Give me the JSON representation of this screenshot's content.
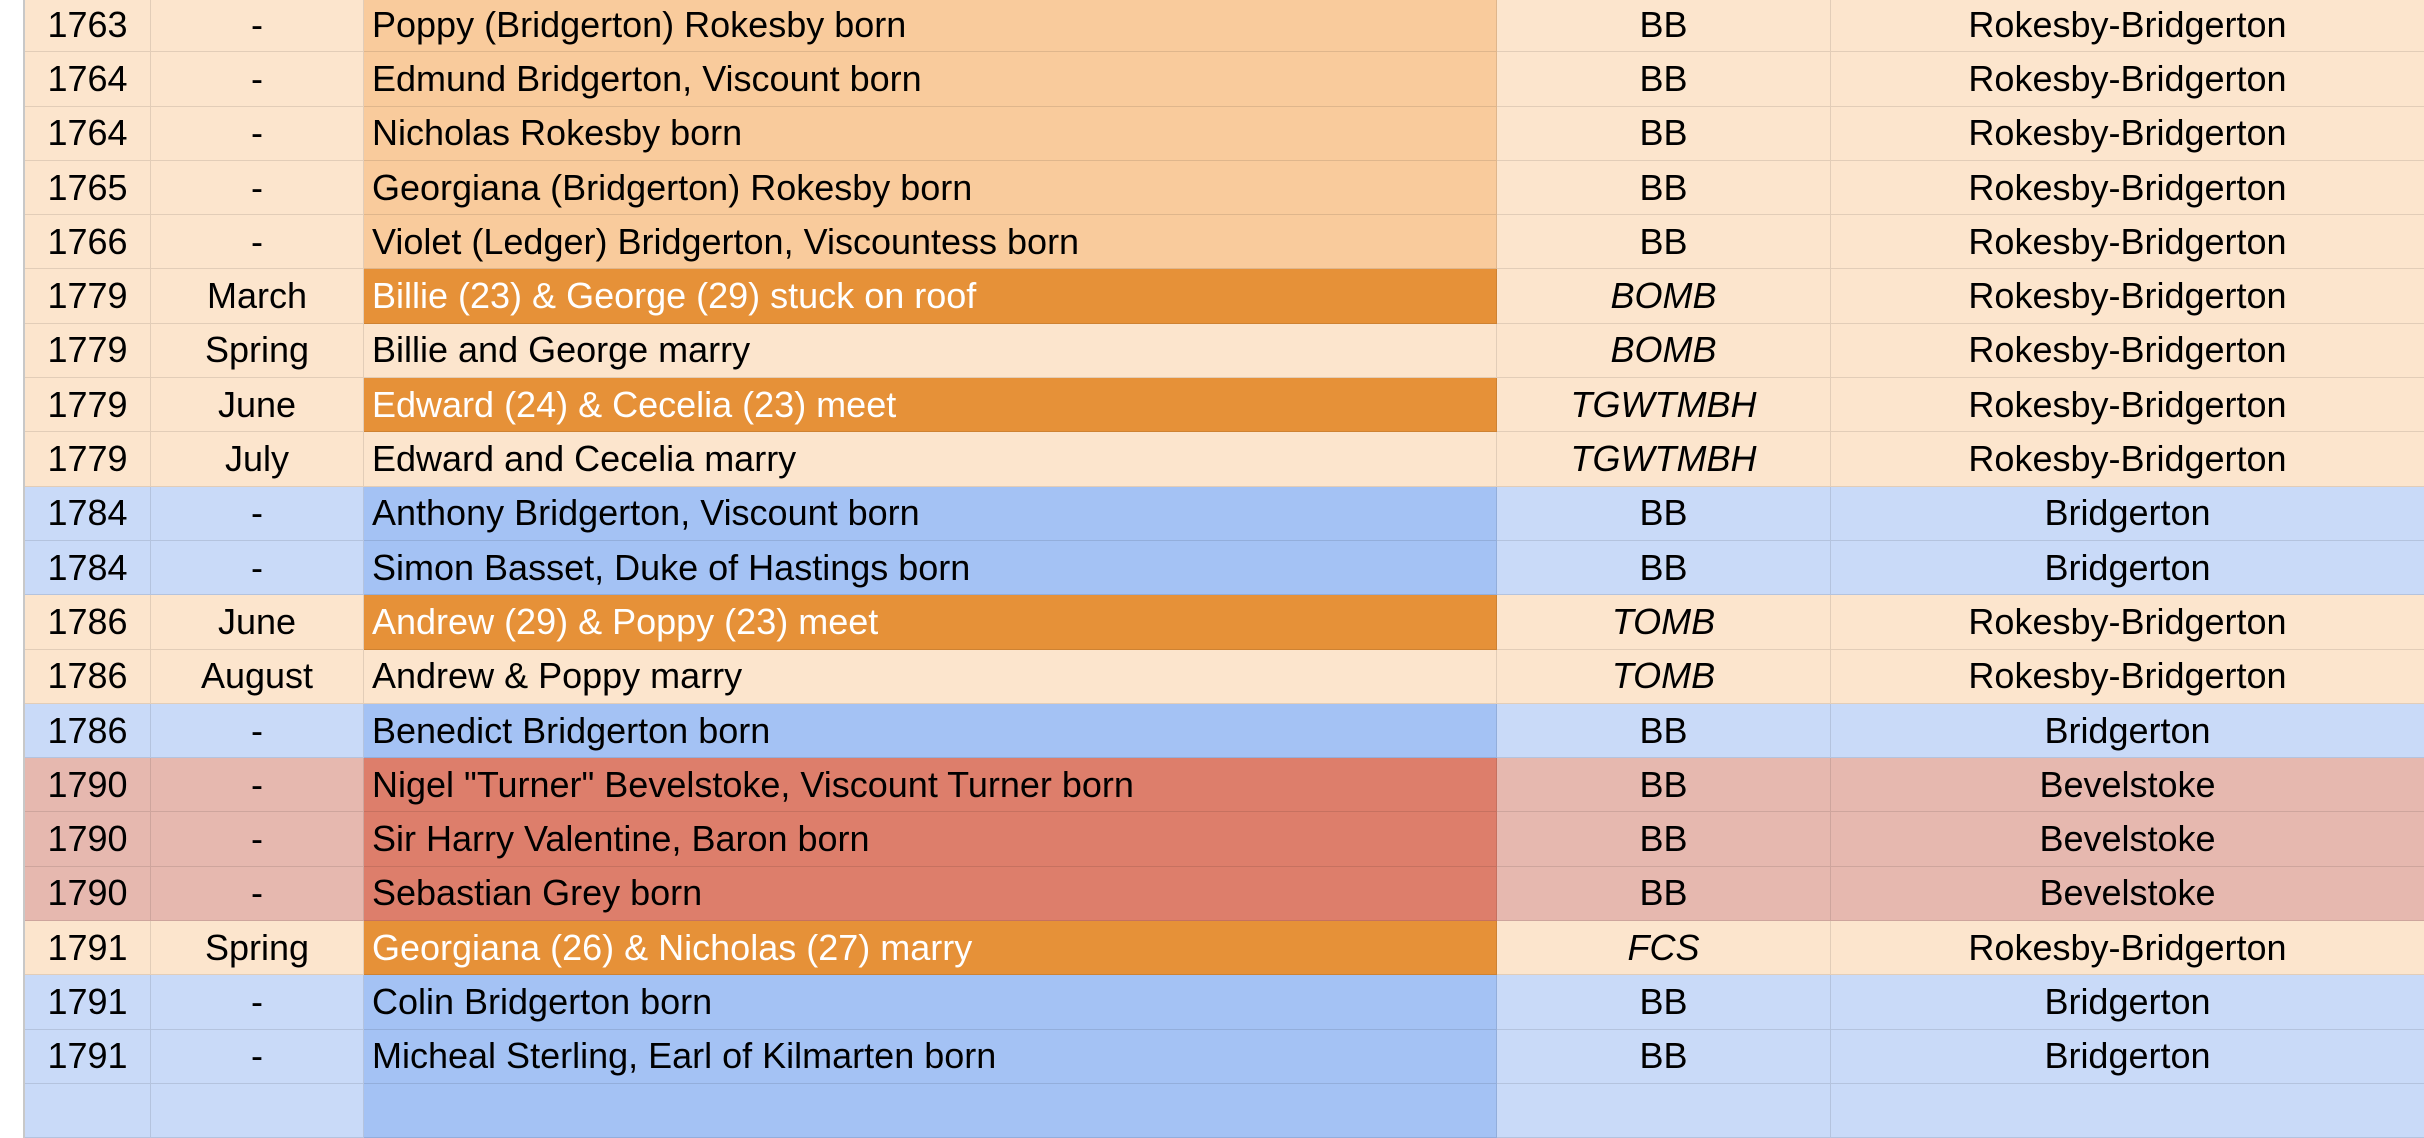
{
  "colors": {
    "rokesby_light": "#fce5cd",
    "rokesby_event": "#f9cb9c",
    "highlight_orange": "#e69138",
    "bridgerton_light": "#c9daf8",
    "bridgerton_event": "#a4c2f4",
    "bevelstoke_light": "#e6b8af",
    "bevelstoke_event": "#dd7e6b"
  },
  "rows": [
    {
      "year": "1763",
      "month": "-",
      "event": "Poppy (Bridgerton) Rokesby born",
      "source": "BB",
      "family": "Rokesby-Bridgerton",
      "style": "rokesby",
      "source_italic": false
    },
    {
      "year": "1764",
      "month": "-",
      "event": "Edmund Bridgerton, Viscount born",
      "source": "BB",
      "family": "Rokesby-Bridgerton",
      "style": "rokesby",
      "source_italic": false
    },
    {
      "year": "1764",
      "month": "-",
      "event": "Nicholas Rokesby born",
      "source": "BB",
      "family": "Rokesby-Bridgerton",
      "style": "rokesby",
      "source_italic": false
    },
    {
      "year": "1765",
      "month": "-",
      "event": "Georgiana (Bridgerton) Rokesby born",
      "source": "BB",
      "family": "Rokesby-Bridgerton",
      "style": "rokesby",
      "source_italic": false
    },
    {
      "year": "1766",
      "month": "-",
      "event": "Violet (Ledger) Bridgerton, Viscountess born",
      "source": "BB",
      "family": "Rokesby-Bridgerton",
      "style": "rokesby",
      "source_italic": false
    },
    {
      "year": "1779",
      "month": "March",
      "event": "Billie (23) & George (29) stuck on roof",
      "source": "BOMB",
      "family": "Rokesby-Bridgerton",
      "style": "highlight",
      "source_italic": true
    },
    {
      "year": "1779",
      "month": "Spring",
      "event": "Billie and George marry",
      "source": "BOMB",
      "family": "Rokesby-Bridgerton",
      "style": "rokesby-plain",
      "source_italic": true
    },
    {
      "year": "1779",
      "month": "June",
      "event": "Edward (24) & Cecelia (23) meet",
      "source": "TGWTMBH",
      "family": "Rokesby-Bridgerton",
      "style": "highlight",
      "source_italic": true
    },
    {
      "year": "1779",
      "month": "July",
      "event": "Edward and Cecelia marry",
      "source": "TGWTMBH",
      "family": "Rokesby-Bridgerton",
      "style": "rokesby-plain",
      "source_italic": true
    },
    {
      "year": "1784",
      "month": "-",
      "event": "Anthony Bridgerton, Viscount born",
      "source": "BB",
      "family": "Bridgerton",
      "style": "bridgerton",
      "source_italic": false
    },
    {
      "year": "1784",
      "month": "-",
      "event": "Simon Basset, Duke of Hastings born",
      "source": "BB",
      "family": "Bridgerton",
      "style": "bridgerton",
      "source_italic": false
    },
    {
      "year": "1786",
      "month": "June",
      "event": "Andrew (29) & Poppy (23) meet",
      "source": "TOMB",
      "family": "Rokesby-Bridgerton",
      "style": "highlight",
      "source_italic": true
    },
    {
      "year": "1786",
      "month": "August",
      "event": "Andrew & Poppy marry",
      "source": "TOMB",
      "family": "Rokesby-Bridgerton",
      "style": "rokesby-plain",
      "source_italic": true
    },
    {
      "year": "1786",
      "month": "-",
      "event": "Benedict Bridgerton born",
      "source": "BB",
      "family": "Bridgerton",
      "style": "bridgerton",
      "source_italic": false
    },
    {
      "year": "1790",
      "month": "-",
      "event": "Nigel \"Turner\" Bevelstoke, Viscount Turner born",
      "source": "BB",
      "family": "Bevelstoke",
      "style": "bevelstoke",
      "source_italic": false
    },
    {
      "year": "1790",
      "month": "-",
      "event": "Sir Harry Valentine, Baron born",
      "source": "BB",
      "family": "Bevelstoke",
      "style": "bevelstoke",
      "source_italic": false
    },
    {
      "year": "1790",
      "month": "-",
      "event": "Sebastian Grey born",
      "source": "BB",
      "family": "Bevelstoke",
      "style": "bevelstoke",
      "source_italic": false
    },
    {
      "year": "1791",
      "month": "Spring",
      "event": "Georgiana (26) & Nicholas (27) marry",
      "source": "FCS",
      "family": "Rokesby-Bridgerton",
      "style": "highlight",
      "source_italic": true
    },
    {
      "year": "1791",
      "month": "-",
      "event": "Colin Bridgerton born",
      "source": "BB",
      "family": "Bridgerton",
      "style": "bridgerton",
      "source_italic": false
    },
    {
      "year": "1791",
      "month": "-",
      "event": "Micheal Sterling, Earl of Kilmarten born",
      "source": "BB",
      "family": "Bridgerton",
      "style": "bridgerton",
      "source_italic": false
    },
    {
      "year": "",
      "month": "",
      "event": "",
      "source": "",
      "family": "",
      "style": "bridgerton",
      "source_italic": false
    }
  ]
}
